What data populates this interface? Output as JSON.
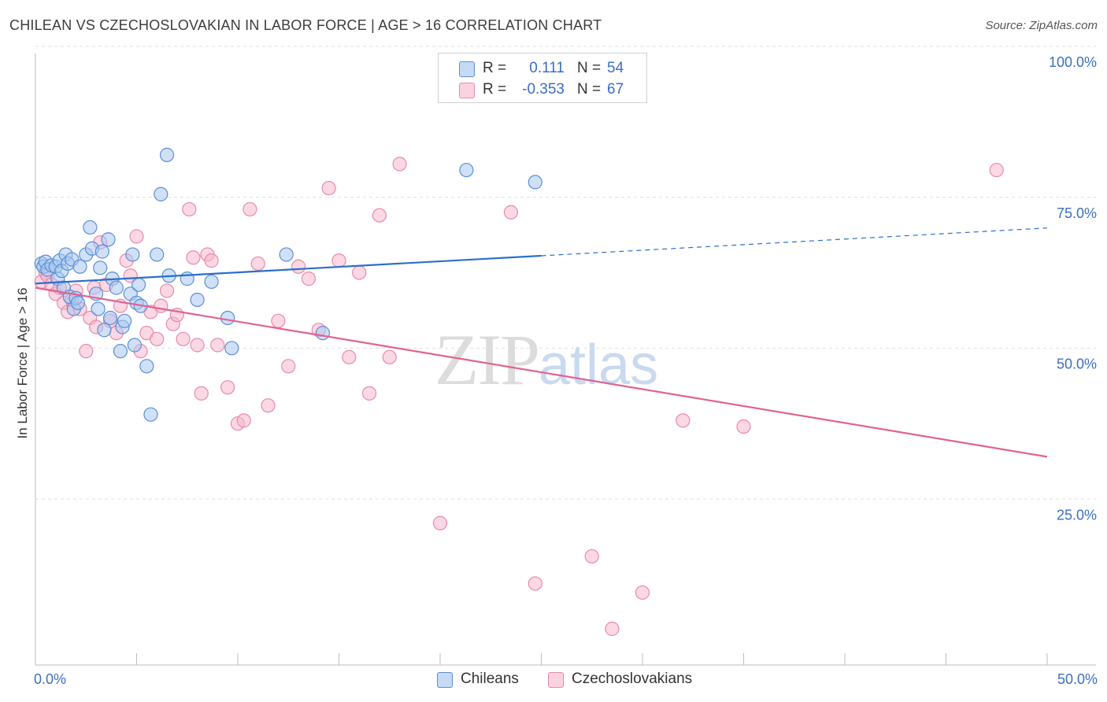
{
  "header": {
    "title": "CHILEAN VS CZECHOSLOVAKIAN IN LABOR FORCE | AGE > 16 CORRELATION CHART",
    "source": "Source: ZipAtlas.com"
  },
  "watermark": {
    "zip": "ZIP",
    "atlas": "atlas"
  },
  "legend": {
    "rows": [
      {
        "r_label": "R =",
        "r_value": "0.111",
        "n_label": "N =",
        "n_value": "54",
        "color": "#a9c8f0"
      },
      {
        "r_label": "R =",
        "r_value": "-0.353",
        "n_label": "N =",
        "n_value": "67",
        "color": "#f7b8cd"
      }
    ]
  },
  "bottom_legend": {
    "chileans": "Chileans",
    "czechoslovakians": "Czechoslovakians"
  },
  "colors": {
    "chileans_fill": "#a9c8f0",
    "chileans_stroke": "#5a8fd6",
    "chileans_line": "#2c6ecb",
    "czech_fill": "#f7b8cd",
    "czech_stroke": "#e88aa9",
    "czech_line": "#e06392",
    "grid": "#dedede",
    "tick_label": "#3a6ec4"
  },
  "chart_data": {
    "type": "scatter",
    "title": "CHILEAN VS CZECHOSLOVAKIAN IN LABOR FORCE | AGE > 16 CORRELATION CHART",
    "ylabel": "In Labor Force | Age > 16",
    "xlabel": "",
    "xlim": [
      0,
      50
    ],
    "ylim": [
      0,
      100
    ],
    "x_tick_labels": [
      "0.0%",
      "50.0%"
    ],
    "y_ticks": [
      25,
      50,
      75,
      100
    ],
    "y_tick_labels": [
      "25.0%",
      "50.0%",
      "75.0%",
      "100.0%"
    ],
    "grid": true,
    "legend_position": "top-center",
    "series": [
      {
        "name": "Chileans",
        "x": [
          0.3,
          0.4,
          0.5,
          0.6,
          0.8,
          1.0,
          1.1,
          1.2,
          1.3,
          1.4,
          1.5,
          1.6,
          1.7,
          1.8,
          1.9,
          2.0,
          2.1,
          2.2,
          2.5,
          2.7,
          2.8,
          3.0,
          3.1,
          3.2,
          3.3,
          3.4,
          3.6,
          3.7,
          3.8,
          4.0,
          4.2,
          4.3,
          4.4,
          4.7,
          4.8,
          4.9,
          5.0,
          5.1,
          5.2,
          5.5,
          5.7,
          6.0,
          6.2,
          6.5,
          6.6,
          7.5,
          8.0,
          8.7,
          9.5,
          9.7,
          12.4,
          14.2,
          21.3,
          24.7
        ],
        "y": [
          66.5,
          66.0,
          66.8,
          65.5,
          66.2,
          66.0,
          64.0,
          67.0,
          65.3,
          62.5,
          68.0,
          66.5,
          61.0,
          67.2,
          59.0,
          60.8,
          60.0,
          66.0,
          68.0,
          72.5,
          69.0,
          61.5,
          59.0,
          65.8,
          68.5,
          55.5,
          70.5,
          57.5,
          64.0,
          62.5,
          52.0,
          56.0,
          57.0,
          61.5,
          68.0,
          53.0,
          60.0,
          63.0,
          59.5,
          49.5,
          41.5,
          68.0,
          78.0,
          84.5,
          64.5,
          64.0,
          60.5,
          63.5,
          57.5,
          52.5,
          68.0,
          55.0,
          82.0,
          80.0
        ]
      },
      {
        "name": "Czechoslovakians",
        "x": [
          0.3,
          0.5,
          0.6,
          0.8,
          1.0,
          1.2,
          1.4,
          1.6,
          1.8,
          2.0,
          2.2,
          2.5,
          2.7,
          2.9,
          3.0,
          3.2,
          3.5,
          3.7,
          4.0,
          4.2,
          4.5,
          4.7,
          5.0,
          5.2,
          5.5,
          5.7,
          6.0,
          6.2,
          6.5,
          6.8,
          7.0,
          7.3,
          7.6,
          7.8,
          8.0,
          8.2,
          8.5,
          8.7,
          9.0,
          9.5,
          10.0,
          10.3,
          10.6,
          11.0,
          11.5,
          12.0,
          12.5,
          13.0,
          13.5,
          14.0,
          14.5,
          15.0,
          15.5,
          16.0,
          16.5,
          17.0,
          17.5,
          18.0,
          20.0,
          23.5,
          24.7,
          27.5,
          28.5,
          30.0,
          32.0,
          35.0,
          47.5
        ],
        "y": [
          63.5,
          65.0,
          64.5,
          63.0,
          61.5,
          62.5,
          60.0,
          58.5,
          60.5,
          62.0,
          59.0,
          52.0,
          57.5,
          62.5,
          56.0,
          70.0,
          63.0,
          57.0,
          55.0,
          59.5,
          67.0,
          64.5,
          71.0,
          52.0,
          55.0,
          58.5,
          54.0,
          59.5,
          62.0,
          56.5,
          58.0,
          54.0,
          75.5,
          67.5,
          53.0,
          45.0,
          68.0,
          67.0,
          53.0,
          46.0,
          40.0,
          40.5,
          75.5,
          66.5,
          43.0,
          57.0,
          49.5,
          66.0,
          64.0,
          55.5,
          79.0,
          67.0,
          51.0,
          65.0,
          45.0,
          74.5,
          51.0,
          83.0,
          23.5,
          75.0,
          13.5,
          18.0,
          6.0,
          12.0,
          40.5,
          39.5,
          82.0
        ]
      }
    ],
    "trend_lines": [
      {
        "name": "Chileans",
        "solid": [
          [
            0,
            63.2
          ],
          [
            25,
            67.8
          ]
        ],
        "dashed": [
          [
            25,
            67.8
          ],
          [
            50,
            72.4
          ]
        ]
      },
      {
        "name": "Czechoslovakians",
        "solid": [
          [
            0,
            62.5
          ],
          [
            50,
            34.5
          ]
        ]
      }
    ]
  }
}
